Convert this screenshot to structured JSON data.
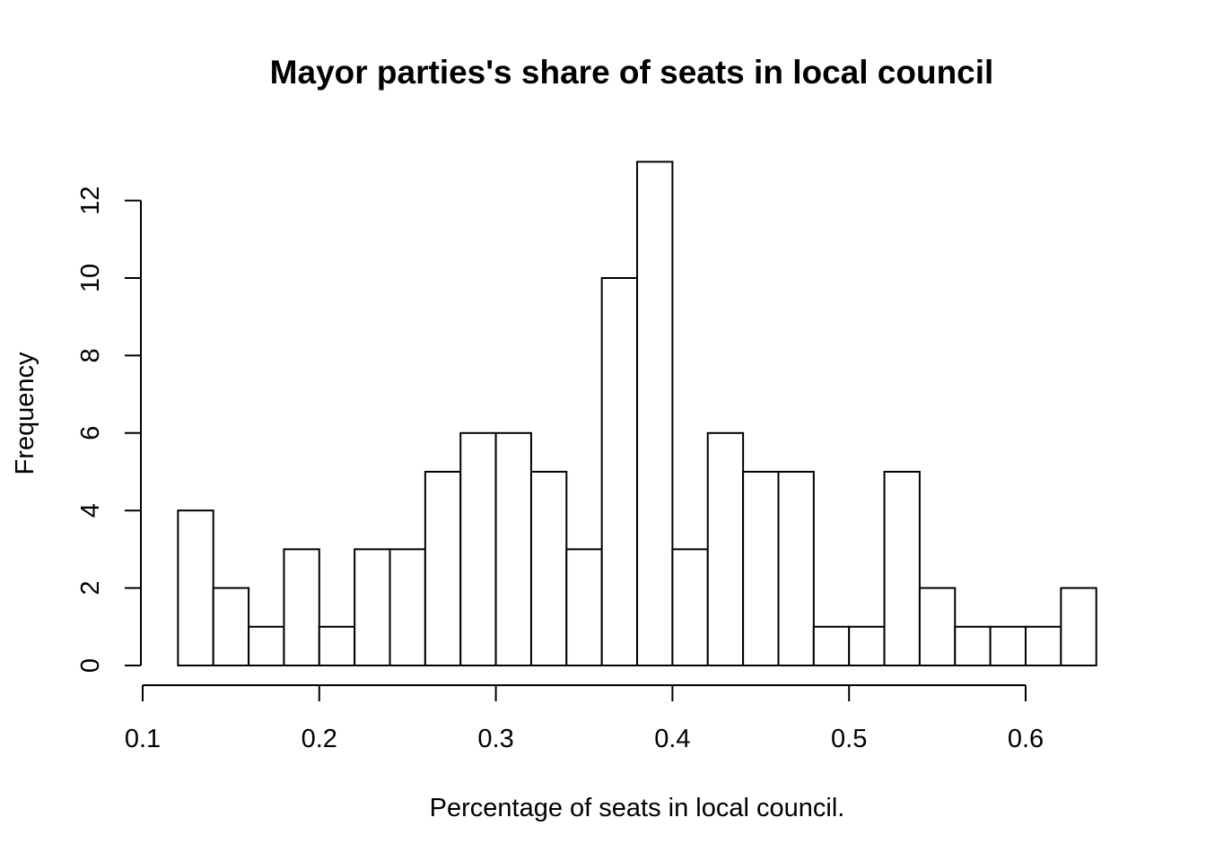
{
  "chart_data": {
    "type": "bar",
    "title": "Mayor parties's share of seats in local council",
    "xlabel": "Percentage of seats in local council.",
    "ylabel": "Frequency",
    "bin_edges": [
      0.12,
      0.14,
      0.16,
      0.18,
      0.2,
      0.22,
      0.24,
      0.26,
      0.28,
      0.3,
      0.32,
      0.34,
      0.36,
      0.38,
      0.4,
      0.42,
      0.44,
      0.46,
      0.48,
      0.5,
      0.52,
      0.54,
      0.56,
      0.58,
      0.6,
      0.62,
      0.64
    ],
    "values": [
      4,
      2,
      1,
      3,
      1,
      3,
      3,
      5,
      6,
      6,
      5,
      3,
      10,
      13,
      3,
      6,
      5,
      5,
      1,
      1,
      5,
      2,
      1,
      1,
      1,
      2
    ],
    "xlim": [
      0.1,
      0.6
    ],
    "ylim": [
      0,
      12
    ],
    "x_ticks": [
      "0.1",
      "0.2",
      "0.3",
      "0.4",
      "0.5",
      "0.6"
    ],
    "y_ticks": [
      "0",
      "2",
      "4",
      "6",
      "8",
      "10",
      "12"
    ],
    "grid": false,
    "bar_fill": "#ffffff",
    "bar_stroke": "#000000"
  }
}
